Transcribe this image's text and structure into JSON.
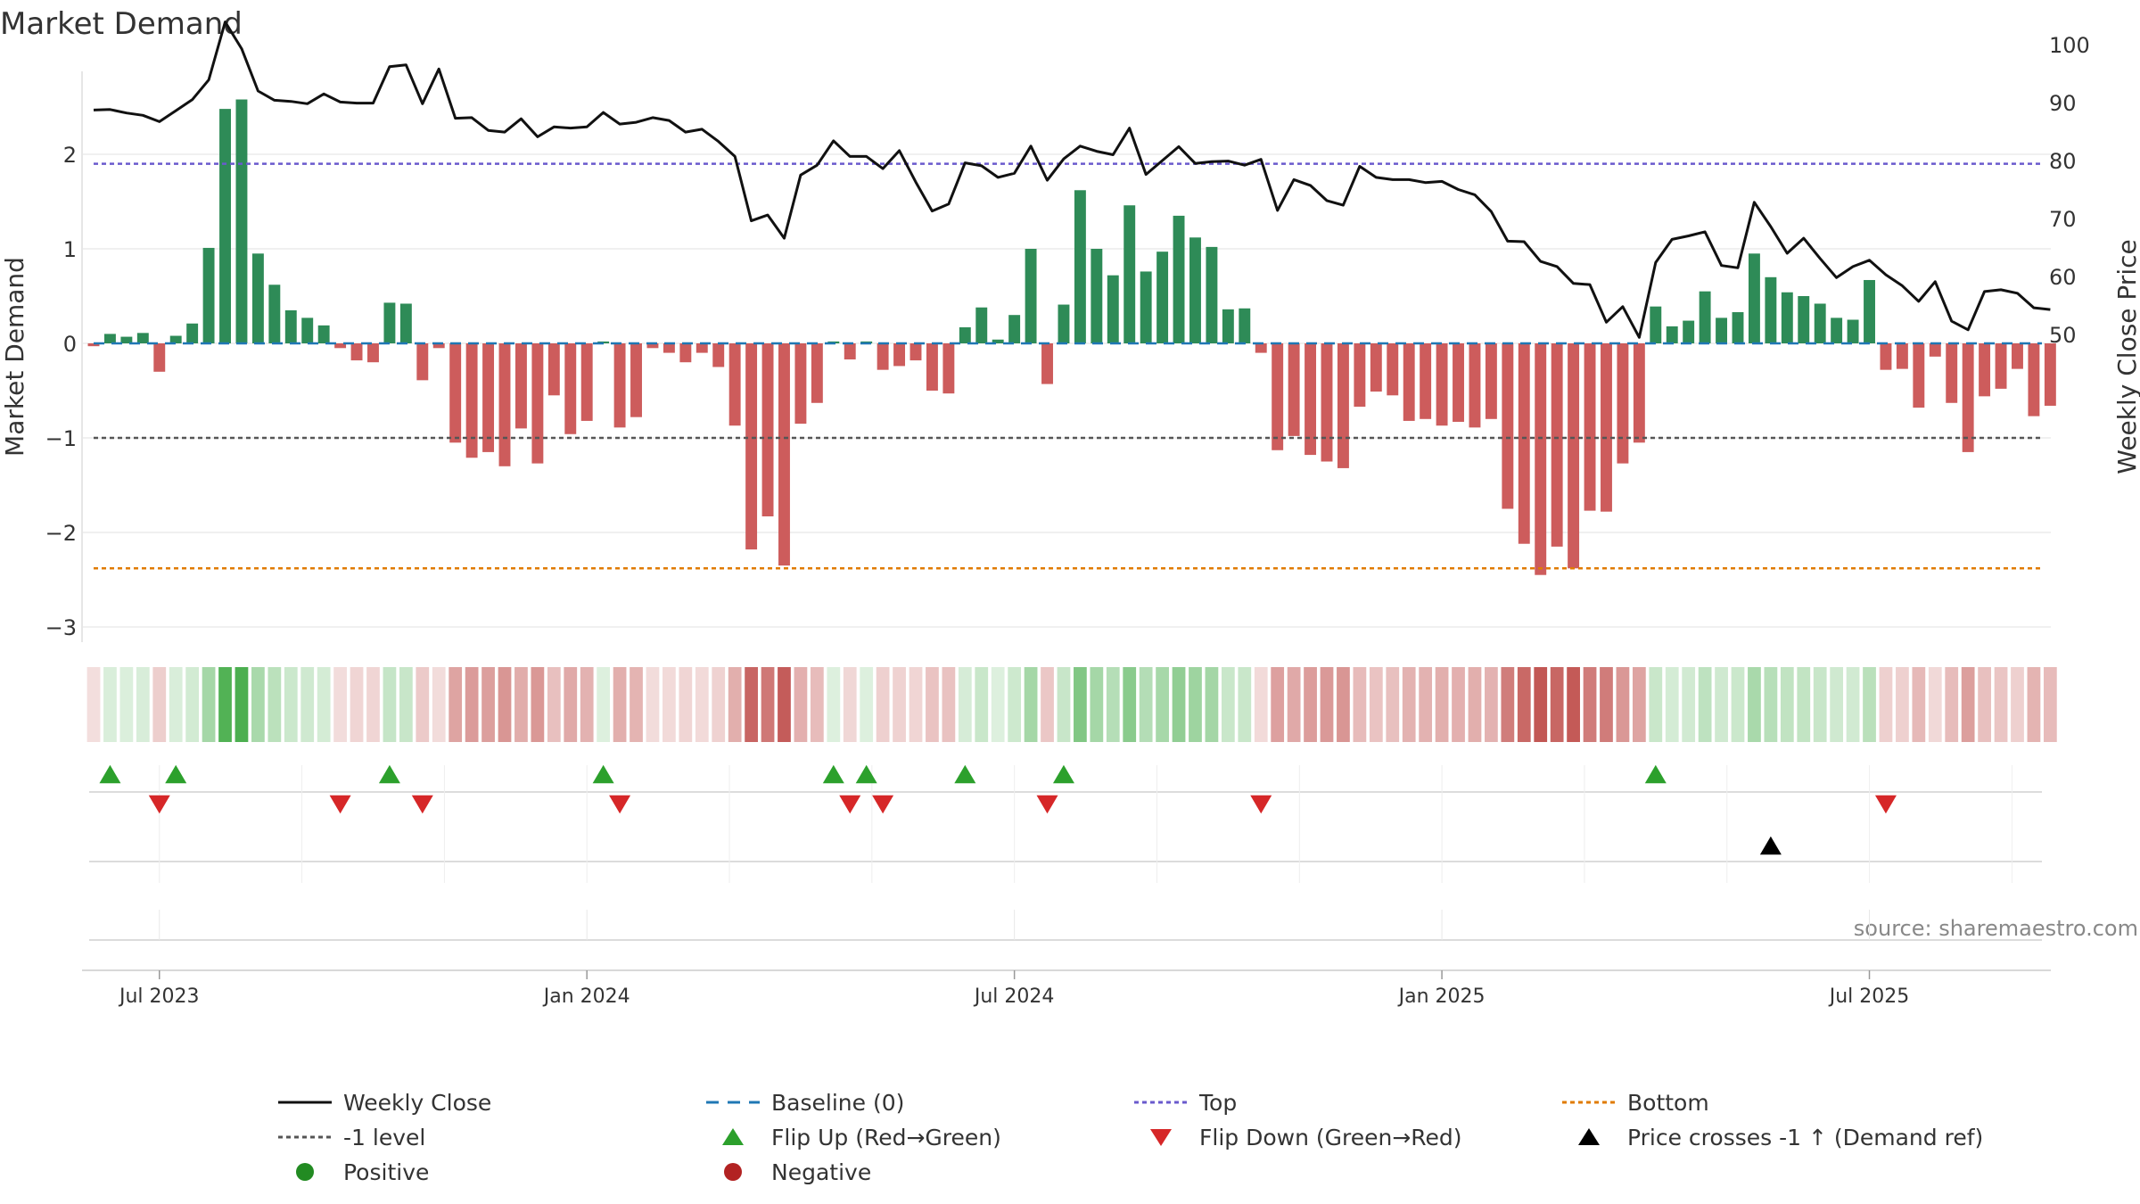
{
  "title": "Market Demand",
  "source": "source: sharemaestro.com",
  "colors": {
    "positive_bar": "#2e8b57",
    "negative_bar": "#cd5c5c",
    "price_line": "#111111",
    "baseline": "#1f77b4",
    "top_line": "#6a5acd",
    "minus1_line": "#555555",
    "bottom_line": "#e07b00",
    "flip_up": "#2ca02c",
    "flip_down": "#d62728",
    "price_cross": "#000000",
    "positive_dot": "#228b22",
    "negative_dot": "#b22222"
  },
  "chart_data": {
    "type": "bar",
    "title": "Market Demand",
    "ylabel": "Market Demand",
    "y2label": "Weekly Close Price",
    "ylim": [
      -3.2,
      2.8
    ],
    "y2lim": [
      48.4,
      106.4
    ],
    "yticks": [
      2,
      1,
      0,
      -1,
      -2,
      -3
    ],
    "yticklabels": [
      "2",
      "1",
      "0",
      "−1",
      "−2",
      "−3"
    ],
    "y2ticks": [
      100,
      90,
      80,
      70,
      60,
      50
    ],
    "xticks": [
      {
        "week": 4,
        "label": "Jul 2023"
      },
      {
        "week": 30,
        "label": "Jan 2024"
      },
      {
        "week": 56,
        "label": "Jul 2024"
      },
      {
        "week": 82,
        "label": "Jan 2025"
      },
      {
        "week": 108,
        "label": "Jul 2025"
      }
    ],
    "series": [
      {
        "name": "Market Demand",
        "values": [
          -0.03,
          0.1,
          0.07,
          0.11,
          -0.3,
          0.08,
          0.21,
          1.01,
          2.48,
          2.58,
          0.95,
          0.62,
          0.35,
          0.27,
          0.19,
          -0.05,
          -0.18,
          -0.2,
          0.43,
          0.42,
          -0.39,
          -0.05,
          -1.05,
          -1.21,
          -1.15,
          -1.3,
          -0.9,
          -1.27,
          -0.55,
          -0.96,
          -0.82,
          0.02,
          -0.89,
          -0.78,
          -0.05,
          -0.1,
          -0.2,
          -0.1,
          -0.25,
          -0.87,
          -2.18,
          -1.83,
          -2.35,
          -0.85,
          -0.63,
          0.02,
          -0.17,
          0.02,
          -0.28,
          -0.24,
          -0.18,
          -0.5,
          -0.53,
          0.17,
          0.38,
          0.04,
          0.3,
          1.0,
          -0.43,
          0.41,
          1.62,
          1.0,
          0.72,
          1.46,
          0.76,
          0.97,
          1.35,
          1.12,
          1.02,
          0.36,
          0.37,
          -0.1,
          -1.13,
          -0.98,
          -1.18,
          -1.25,
          -1.32,
          -0.67,
          -0.51,
          -0.55,
          -0.82,
          -0.8,
          -0.87,
          -0.83,
          -0.89,
          -0.8,
          -1.75,
          -2.12,
          -2.45,
          -2.15,
          -2.38,
          -1.77,
          -1.78,
          -1.27,
          -1.05,
          0.39,
          0.18,
          0.24,
          0.55,
          0.27,
          0.33,
          0.95,
          0.7,
          0.54,
          0.5,
          0.42,
          0.27,
          0.25,
          0.67,
          -0.28,
          -0.27,
          -0.68,
          -0.14,
          -0.63,
          -1.15,
          -0.56,
          -0.48,
          -0.27,
          -0.77,
          -0.66
        ]
      },
      {
        "name": "Weekly Close",
        "values": [
          88.7,
          88.8,
          88.2,
          87.8,
          86.7,
          88.6,
          90.5,
          93.9,
          103.9,
          99.3,
          92.0,
          90.4,
          90.2,
          89.8,
          91.5,
          90.1,
          89.9,
          89.9,
          96.2,
          96.5,
          89.8,
          95.8,
          87.3,
          87.4,
          85.2,
          84.9,
          87.2,
          84.1,
          85.8,
          85.6,
          85.8,
          88.3,
          86.3,
          86.6,
          87.4,
          86.9,
          84.9,
          85.4,
          83.3,
          80.7,
          69.6,
          70.6,
          66.6,
          77.5,
          79.2,
          83.4,
          80.7,
          80.7,
          78.6,
          81.7,
          76.3,
          71.3,
          72.5,
          79.6,
          79.1,
          77.1,
          77.8,
          82.5,
          76.6,
          80.3,
          82.5,
          81.6,
          81.0,
          85.6,
          77.6,
          80.0,
          82.4,
          79.5,
          79.8,
          79.9,
          79.2,
          80.2,
          71.4,
          76.7,
          75.7,
          73.1,
          72.3,
          79.0,
          77.1,
          76.7,
          76.7,
          76.2,
          76.4,
          75.0,
          74.1,
          71.2,
          66.1,
          66.0,
          62.6,
          61.7,
          58.8,
          58.6,
          52.1,
          54.8,
          49.5,
          62.4,
          66.4,
          67.0,
          67.7,
          61.9,
          61.5,
          72.8,
          68.6,
          64.0,
          66.6,
          63.1,
          59.8,
          61.7,
          62.8,
          60.3,
          58.4,
          55.7,
          59.1,
          52.3,
          50.8,
          57.4,
          57.7,
          57.1,
          54.6,
          54.3
        ]
      }
    ],
    "reference_lines": [
      {
        "name": "Baseline (0)",
        "axis": "left",
        "value": 0
      },
      {
        "name": "Top",
        "axis": "left",
        "value": 1.9
      },
      {
        "name": "-1 level",
        "axis": "left",
        "value": -1
      },
      {
        "name": "Bottom",
        "axis": "left",
        "value": -2.38
      }
    ],
    "flip_up_weeks": [
      1,
      5,
      18,
      31,
      45,
      47,
      53,
      59,
      95
    ],
    "flip_down_weeks": [
      4,
      15,
      20,
      32,
      46,
      48,
      58,
      71,
      109
    ],
    "price_cross_weeks": [
      102
    ]
  },
  "legend": [
    {
      "label": "Weekly Close",
      "kind": "line",
      "color": "#111111"
    },
    {
      "label": "Baseline (0)",
      "kind": "dash",
      "color": "#1f77b4"
    },
    {
      "label": "Top",
      "kind": "dot",
      "color": "#6a5acd"
    },
    {
      "label": "Bottom",
      "kind": "dot",
      "color": "#e07b00"
    },
    {
      "label": "-1 level",
      "kind": "dot",
      "color": "#555555"
    },
    {
      "label": "Flip Up (Red→Green)",
      "kind": "tri-up",
      "color": "#2ca02c"
    },
    {
      "label": "Flip Down (Green→Red)",
      "kind": "tri-down",
      "color": "#d62728"
    },
    {
      "label": "Price crosses -1 ↑ (Demand ref)",
      "kind": "tri-up",
      "color": "#000000"
    },
    {
      "label": "Positive",
      "kind": "circle",
      "color": "#228b22"
    },
    {
      "label": "Negative",
      "kind": "circle",
      "color": "#b22222"
    }
  ]
}
